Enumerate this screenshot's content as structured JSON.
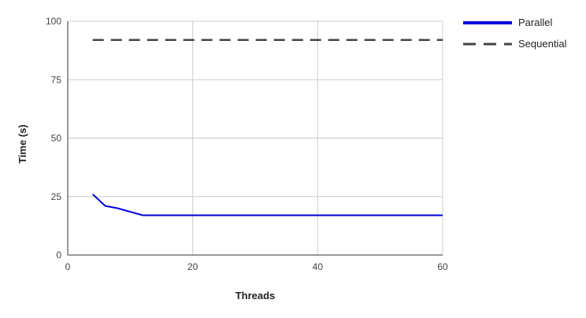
{
  "colors": {
    "parallel": "#0000dd",
    "sequential": "#444444",
    "grid": "#cccccc",
    "axis": "#333333"
  },
  "chart_data": {
    "type": "line",
    "title": "",
    "xlabel": "Threads",
    "ylabel": "Time (s)",
    "xlim": [
      0,
      60
    ],
    "ylim": [
      0,
      100
    ],
    "x_ticks": [
      0,
      20,
      40,
      60
    ],
    "y_ticks": [
      0,
      25,
      50,
      75,
      100
    ],
    "x_tick_labels": [
      "0",
      "20",
      "40",
      "60"
    ],
    "y_tick_labels": [
      "0",
      "25",
      "50",
      "75",
      "100"
    ],
    "grid": true,
    "legend_position": "right",
    "series": [
      {
        "name": "Parallel",
        "style": "solid",
        "points": [
          [
            4,
            26
          ],
          [
            6,
            21
          ],
          [
            8,
            20
          ],
          [
            12,
            17
          ],
          [
            16,
            17
          ],
          [
            24,
            17
          ],
          [
            32,
            17
          ],
          [
            48,
            17
          ],
          [
            60,
            17
          ]
        ]
      },
      {
        "name": "Sequential",
        "style": "dashed",
        "points": [
          [
            4,
            92
          ],
          [
            60,
            92
          ]
        ]
      }
    ]
  }
}
